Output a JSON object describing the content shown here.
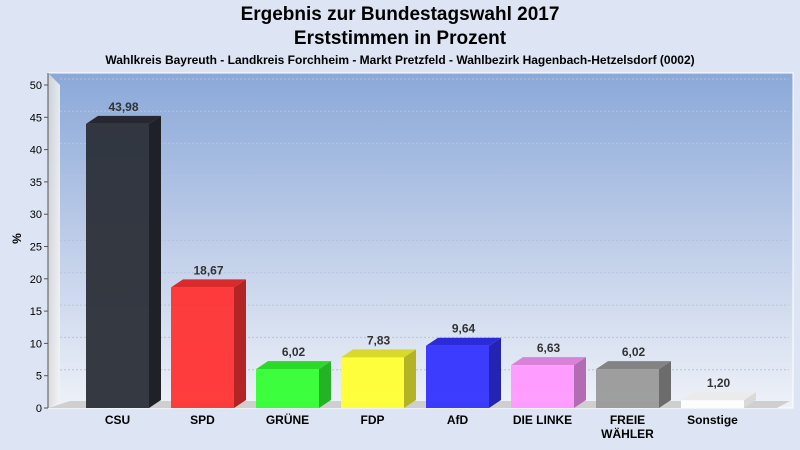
{
  "title": "Ergebnis zur Bundestagswahl 2017",
  "subtitle": "Erststimmen in Prozent",
  "caption": "Wahlkreis Bayreuth - Landkreis Forchheim - Markt Pretzfeld - Wahlbezirk Hagenbach-Hetzelsdorf (0002)",
  "chart_data": {
    "type": "bar",
    "title": "Ergebnis zur Bundestagswahl 2017",
    "subtitle": "Erststimmen in Prozent",
    "ylabel": "%",
    "xlabel": "",
    "ylim": [
      0,
      50
    ],
    "yticks": [
      0,
      5,
      10,
      15,
      20,
      25,
      30,
      35,
      40,
      45,
      50
    ],
    "grid": true,
    "categories": [
      "CSU",
      "SPD",
      "GRÜNE",
      "FDP",
      "AfD",
      "DIE LINKE",
      "FREIE WÄHLER",
      "Sonstige"
    ],
    "values": [
      43.98,
      18.67,
      6.02,
      7.83,
      9.64,
      6.63,
      6.02,
      1.2
    ],
    "value_labels": [
      "43,98",
      "18,67",
      "6,02",
      "7,83",
      "9,64",
      "6,63",
      "6,02",
      "1,20"
    ],
    "colors": [
      "#2b2f38",
      "#ff3333",
      "#33ff33",
      "#ffff33",
      "#3333ff",
      "#ff99ff",
      "#9a9a9a",
      "#ffffff"
    ]
  }
}
